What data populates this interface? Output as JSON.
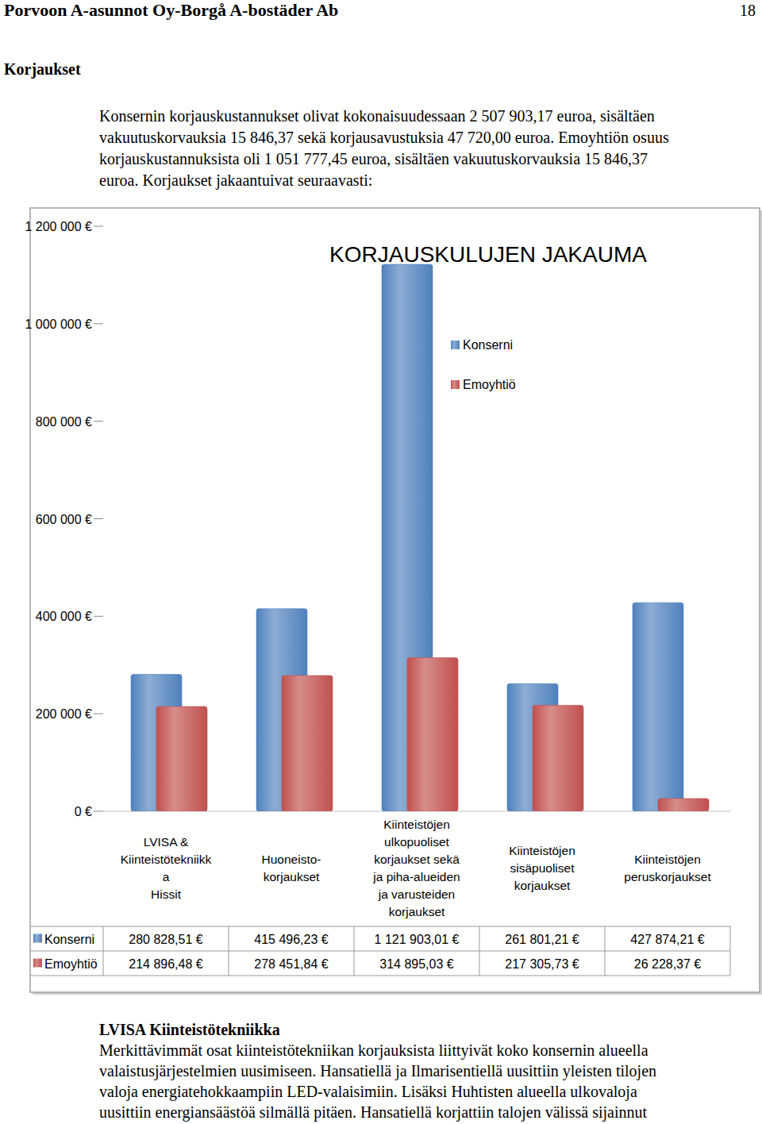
{
  "header": {
    "title": "Porvoon A-asunnot Oy-Borgå A-bostäder Ab",
    "page": "18"
  },
  "section": {
    "heading": "Korjaukset",
    "lines": [
      "Konsernin korjauskustannukset olivat kokonaisuudessaan 2 507 903,17 euroa, sisältäen",
      "vakuutuskorvauksia 15 846,37 sekä korjausavustuksia 47 720,00 euroa. Emoyhtiön osuus",
      "korjauskustannuksista oli 1 051 777,45 euroa, sisältäen vakuutuskorvauksia 15 846,37",
      "euroa. Korjaukset jakaantuivat seuraavasti:"
    ]
  },
  "chart_data": {
    "type": "bar",
    "title": "KORJAUSKULUJEN JAKAUMA",
    "categories": [
      "LVISA &\nKiinteistötekniikk\na\nHissit",
      "Huoneisto-\nkorjaukset",
      "Kiinteistöjen\nulkopuoliset\nkorjaukset sekä\nja piha-alueiden\nja varusteiden\nkorjaukset",
      "Kiinteistöjen\nsisäpuoliset\nkorjaukset",
      "Kiinteistöjen\nperuskorjaukset"
    ],
    "series": [
      {
        "name": "Konserni",
        "color": "#4f81bd",
        "values": [
          280828.51,
          415496.23,
          1121903.01,
          261801.21,
          427874.21
        ],
        "value_labels": [
          "280 828,51 €",
          "415 496,23 €",
          "1 121 903,01 €",
          "261 801,21 €",
          "427 874,21 €"
        ]
      },
      {
        "name": "Emoyhtiö",
        "color": "#c0504d",
        "values": [
          214896.48,
          278451.84,
          314895.03,
          217305.73,
          26228.37
        ],
        "value_labels": [
          "214 896,48 €",
          "278 451,84 €",
          "314 895,03 €",
          "217 305,73 €",
          "26 228,37 €"
        ]
      }
    ],
    "ylim": [
      0,
      1200000
    ],
    "yticks": [
      {
        "value": 0,
        "label": "0 €"
      },
      {
        "value": 200000,
        "label": "200 000 €"
      },
      {
        "value": 400000,
        "label": "400 000 €"
      },
      {
        "value": 600000,
        "label": "600 000 €"
      },
      {
        "value": 800000,
        "label": "800 000 €"
      },
      {
        "value": 1000000,
        "label": "1 000 000 €"
      },
      {
        "value": 1200000,
        "label": "1 200 000 €"
      }
    ],
    "grid": false,
    "legend": "center"
  },
  "subsection": {
    "heading": "LVISA Kiinteistötekniikka",
    "lines": [
      "Merkittävimmät osat kiinteistötekniikan korjauksista liittyivät koko konsernin alueella",
      "valaistusjärjestelmien uusimiseen. Hansatiellä ja Ilmarisentiellä uusittiin yleisten tilojen",
      "valoja energiatehokkaampiin LED-valaisimiin. Lisäksi Huhtisten alueella ulkovaloja",
      "uusittiin energiansäästöä silmällä pitäen. Hansatiellä korjattiin talojen välissä sijainnut"
    ]
  }
}
